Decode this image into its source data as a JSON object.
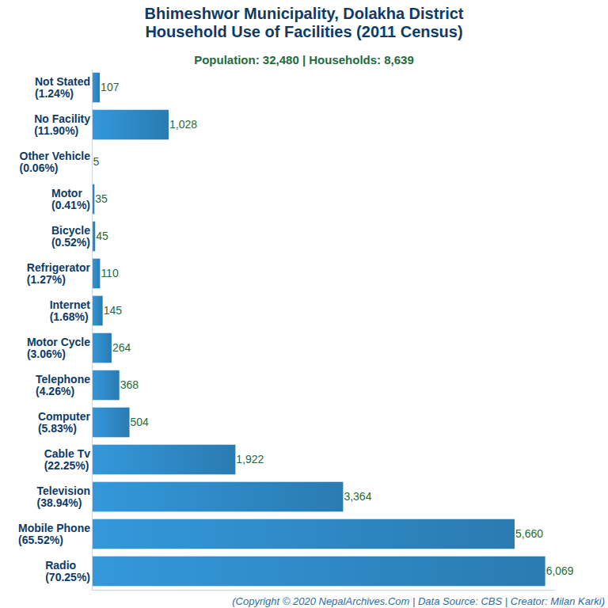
{
  "chart_data": {
    "type": "bar",
    "orientation": "horizontal",
    "title": "Bhimeshwor Municipality, Dolakha District\nHousehold Use of Facilities (2011 Census)",
    "subtitle": "Population: 32,480 | Households: 8,639",
    "caption": "(Copyright © 2020 NepalArchives.Com | Data Source: CBS | Creator: Milan Karki)",
    "categories": [
      "Not Stated\n(1.24%)",
      "No Facility\n(11.90%)",
      "Other Vehicle\n(0.06%)",
      "Motor\n(0.41%)",
      "Bicycle\n(0.52%)",
      "Refrigerator\n(1.27%)",
      "Internet\n(1.68%)",
      "Motor Cycle\n(3.06%)",
      "Telephone\n(4.26%)",
      "Computer\n(5.83%)",
      "Cable Tv\n(22.25%)",
      "Television\n(38.94%)",
      "Mobile Phone\n(65.52%)",
      "Radio\n(70.25%)"
    ],
    "values": [
      107,
      1028,
      5,
      35,
      45,
      110,
      145,
      264,
      368,
      504,
      1922,
      3364,
      5660,
      6069
    ],
    "value_labels": [
      "107",
      "1,028",
      "5",
      "35",
      "45",
      "110",
      "145",
      "264",
      "368",
      "504",
      "1,922",
      "3,364",
      "5,660",
      "6,069"
    ],
    "color": "#3498db",
    "xlim": [
      0,
      6200
    ],
    "tick_labels": false,
    "data_labels": true,
    "grid": false
  }
}
